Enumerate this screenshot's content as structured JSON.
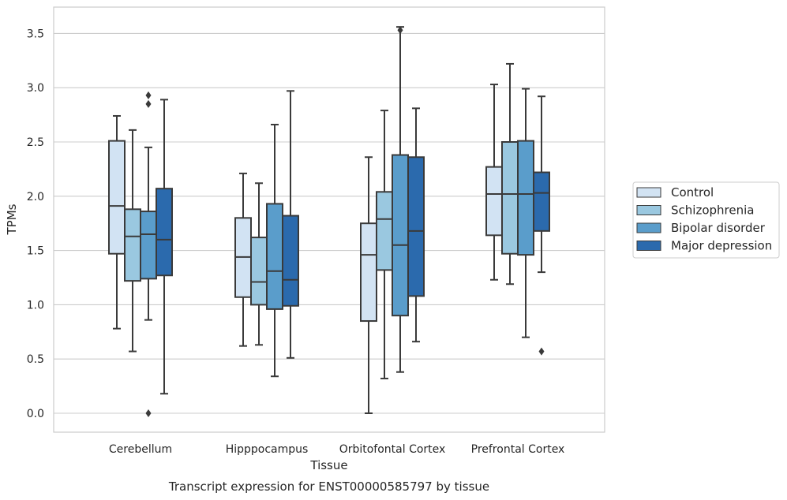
{
  "chart_data": {
    "type": "box",
    "title": "",
    "caption": "Transcript expression for ENST00000585797 by tissue",
    "xlabel": "Tissue",
    "ylabel": "TPMs",
    "ylim": [
      -0.17,
      3.7
    ],
    "yticks": [
      "0.0",
      "0.5",
      "1.0",
      "1.5",
      "2.0",
      "2.5",
      "3.0",
      "3.5"
    ],
    "grid": "horizontal",
    "legend_position": "right",
    "categories": [
      "Cerebellum",
      "Hipppocampus",
      "Orbitofontal Cortex",
      "Prefrontal Cortex"
    ],
    "series": [
      {
        "name": "Control",
        "color": "#d2e3f3",
        "boxes": [
          {
            "whislo": 0.78,
            "q1": 1.47,
            "med": 1.91,
            "q3": 2.51,
            "whishi": 2.74,
            "fliers": []
          },
          {
            "whislo": 0.62,
            "q1": 1.07,
            "med": 1.44,
            "q3": 1.8,
            "whishi": 2.21,
            "fliers": []
          },
          {
            "whislo": 0.0,
            "q1": 0.85,
            "med": 1.46,
            "q3": 1.75,
            "whishi": 2.36,
            "fliers": []
          },
          {
            "whislo": 1.23,
            "q1": 1.64,
            "med": 2.02,
            "q3": 2.27,
            "whishi": 3.03,
            "fliers": []
          }
        ]
      },
      {
        "name": "Schizophrenia",
        "color": "#9ac8e0",
        "boxes": [
          {
            "whislo": 0.57,
            "q1": 1.22,
            "med": 1.63,
            "q3": 1.88,
            "whishi": 2.61,
            "fliers": []
          },
          {
            "whislo": 0.63,
            "q1": 1.0,
            "med": 1.21,
            "q3": 1.62,
            "whishi": 2.12,
            "fliers": []
          },
          {
            "whislo": 0.32,
            "q1": 1.32,
            "med": 1.79,
            "q3": 2.04,
            "whishi": 2.79,
            "fliers": []
          },
          {
            "whislo": 1.19,
            "q1": 1.47,
            "med": 2.02,
            "q3": 2.5,
            "whishi": 3.22,
            "fliers": []
          }
        ]
      },
      {
        "name": "Bipolar disorder",
        "color": "#5a9dcb",
        "boxes": [
          {
            "whislo": 0.86,
            "q1": 1.24,
            "med": 1.65,
            "q3": 1.86,
            "whishi": 2.45,
            "fliers": [
              2.93,
              2.85,
              0.0
            ]
          },
          {
            "whislo": 0.34,
            "q1": 0.96,
            "med": 1.31,
            "q3": 1.93,
            "whishi": 2.66,
            "fliers": []
          },
          {
            "whislo": 0.38,
            "q1": 0.9,
            "med": 1.55,
            "q3": 2.38,
            "whishi": 3.56,
            "fliers": [
              3.53
            ]
          },
          {
            "whislo": 0.7,
            "q1": 1.46,
            "med": 2.02,
            "q3": 2.51,
            "whishi": 2.99,
            "fliers": []
          }
        ]
      },
      {
        "name": "Major depression",
        "color": "#2b6aad",
        "boxes": [
          {
            "whislo": 0.18,
            "q1": 1.27,
            "med": 1.6,
            "q3": 2.07,
            "whishi": 2.89,
            "fliers": []
          },
          {
            "whislo": 0.51,
            "q1": 0.99,
            "med": 1.23,
            "q3": 1.82,
            "whishi": 2.97,
            "fliers": []
          },
          {
            "whislo": 0.66,
            "q1": 1.08,
            "med": 1.68,
            "q3": 2.36,
            "whishi": 2.81,
            "fliers": []
          },
          {
            "whislo": 1.3,
            "q1": 1.68,
            "med": 2.03,
            "q3": 2.22,
            "whishi": 2.92,
            "fliers": [
              0.57
            ]
          }
        ]
      }
    ]
  }
}
